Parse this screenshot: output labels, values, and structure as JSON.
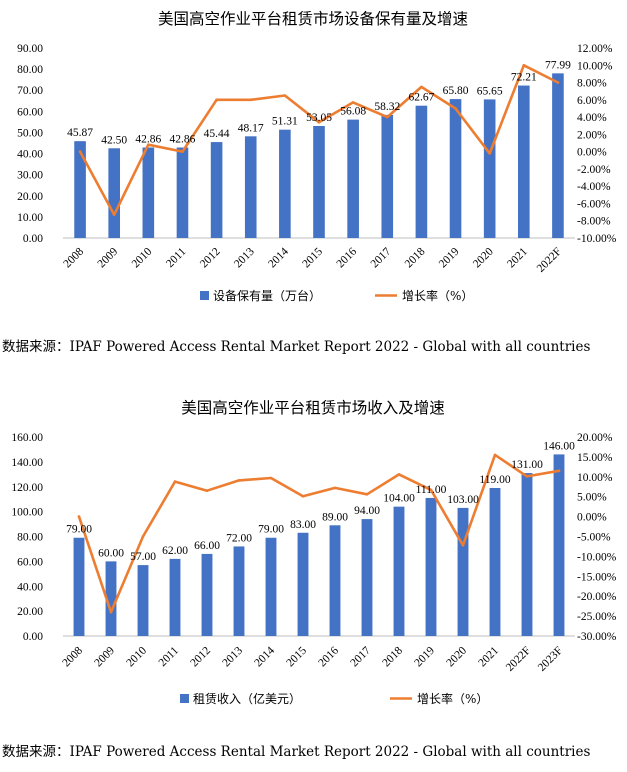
{
  "chart_data": [
    {
      "type": "bar",
      "title": "美国高空作业平台租赁市场设备保有量及增速",
      "categories": [
        "2008",
        "2009",
        "2010",
        "2011",
        "2012",
        "2013",
        "2014",
        "2015",
        "2016",
        "2017",
        "2018",
        "2019",
        "2020",
        "2021",
        "2022F"
      ],
      "series": [
        {
          "name": "设备保有量（万台）",
          "type": "bar",
          "axis": "left",
          "values": [
            45.87,
            42.5,
            42.86,
            42.86,
            45.44,
            48.17,
            51.31,
            53.05,
            56.08,
            58.32,
            62.67,
            65.8,
            65.65,
            72.21,
            77.99
          ],
          "labels": [
            "45.87",
            "42.50",
            "42.86",
            "42.86",
            "45.44",
            "48.17",
            "51.31",
            "53.05",
            "56.08",
            "58.32",
            "62.67",
            "65.80",
            "65.65",
            "72.21",
            "77.99"
          ]
        },
        {
          "name": "增长率（%）",
          "type": "line",
          "axis": "right",
          "values": [
            0.0,
            -7.3,
            0.8,
            0.0,
            6.0,
            6.0,
            6.5,
            3.4,
            5.7,
            4.0,
            7.5,
            5.0,
            -0.2,
            10.0,
            8.0
          ]
        }
      ],
      "ylim_left": [
        0,
        90
      ],
      "ylim_right": [
        -10,
        12
      ],
      "yticks_left": [
        "0.00",
        "10.00",
        "20.00",
        "30.00",
        "40.00",
        "50.00",
        "60.00",
        "70.00",
        "80.00",
        "90.00"
      ],
      "yticks_right": [
        "-10.00%",
        "-8.00%",
        "-6.00%",
        "-4.00%",
        "-2.00%",
        "0.00%",
        "2.00%",
        "4.00%",
        "6.00%",
        "8.00%",
        "10.00%",
        "12.00%"
      ],
      "legend_position": "bottom",
      "grid": false,
      "colors": {
        "bar": "#4472C4",
        "line": "#ED7D31"
      },
      "source": "数据来源：IPAF Powered Access Rental Market Report 2022 - Global with all countries"
    },
    {
      "type": "bar",
      "title": "美国高空作业平台租赁市场收入及增速",
      "categories": [
        "2008",
        "2009",
        "2010",
        "2011",
        "2012",
        "2013",
        "2014",
        "2015",
        "2016",
        "2017",
        "2018",
        "2019",
        "2020",
        "2021",
        "2022F",
        "2023F"
      ],
      "series": [
        {
          "name": "租赁收入（亿美元）",
          "type": "bar",
          "axis": "left",
          "values": [
            79,
            60,
            57,
            62,
            66,
            72,
            79,
            83,
            89,
            94,
            104,
            111,
            103,
            119,
            131,
            146
          ],
          "labels": [
            "79.00",
            "60.00",
            "57.00",
            "62.00",
            "66.00",
            "72.00",
            "79.00",
            "83.00",
            "89.00",
            "94.00",
            "104.00",
            "111.00",
            "103.00",
            "119.00",
            "131.00",
            "146.00"
          ]
        },
        {
          "name": "增长率（%）",
          "type": "line",
          "axis": "right",
          "values": [
            0.0,
            -24.0,
            -5.0,
            8.8,
            6.5,
            9.1,
            9.7,
            5.1,
            7.2,
            5.6,
            10.6,
            6.7,
            -7.2,
            15.5,
            10.1,
            11.5
          ]
        }
      ],
      "ylim_left": [
        0,
        160
      ],
      "ylim_right": [
        -30,
        20
      ],
      "yticks_left": [
        "0.00",
        "20.00",
        "40.00",
        "60.00",
        "80.00",
        "100.00",
        "120.00",
        "140.00",
        "160.00"
      ],
      "yticks_right": [
        "-30.00%",
        "-25.00%",
        "-20.00%",
        "-15.00%",
        "-10.00%",
        "-5.00%",
        "0.00%",
        "5.00%",
        "10.00%",
        "15.00%",
        "20.00%"
      ],
      "legend_position": "bottom",
      "grid": false,
      "colors": {
        "bar": "#4472C4",
        "line": "#ED7D31"
      },
      "source": "数据来源：IPAF Powered Access Rental Market Report 2022 - Global with all countries"
    }
  ]
}
